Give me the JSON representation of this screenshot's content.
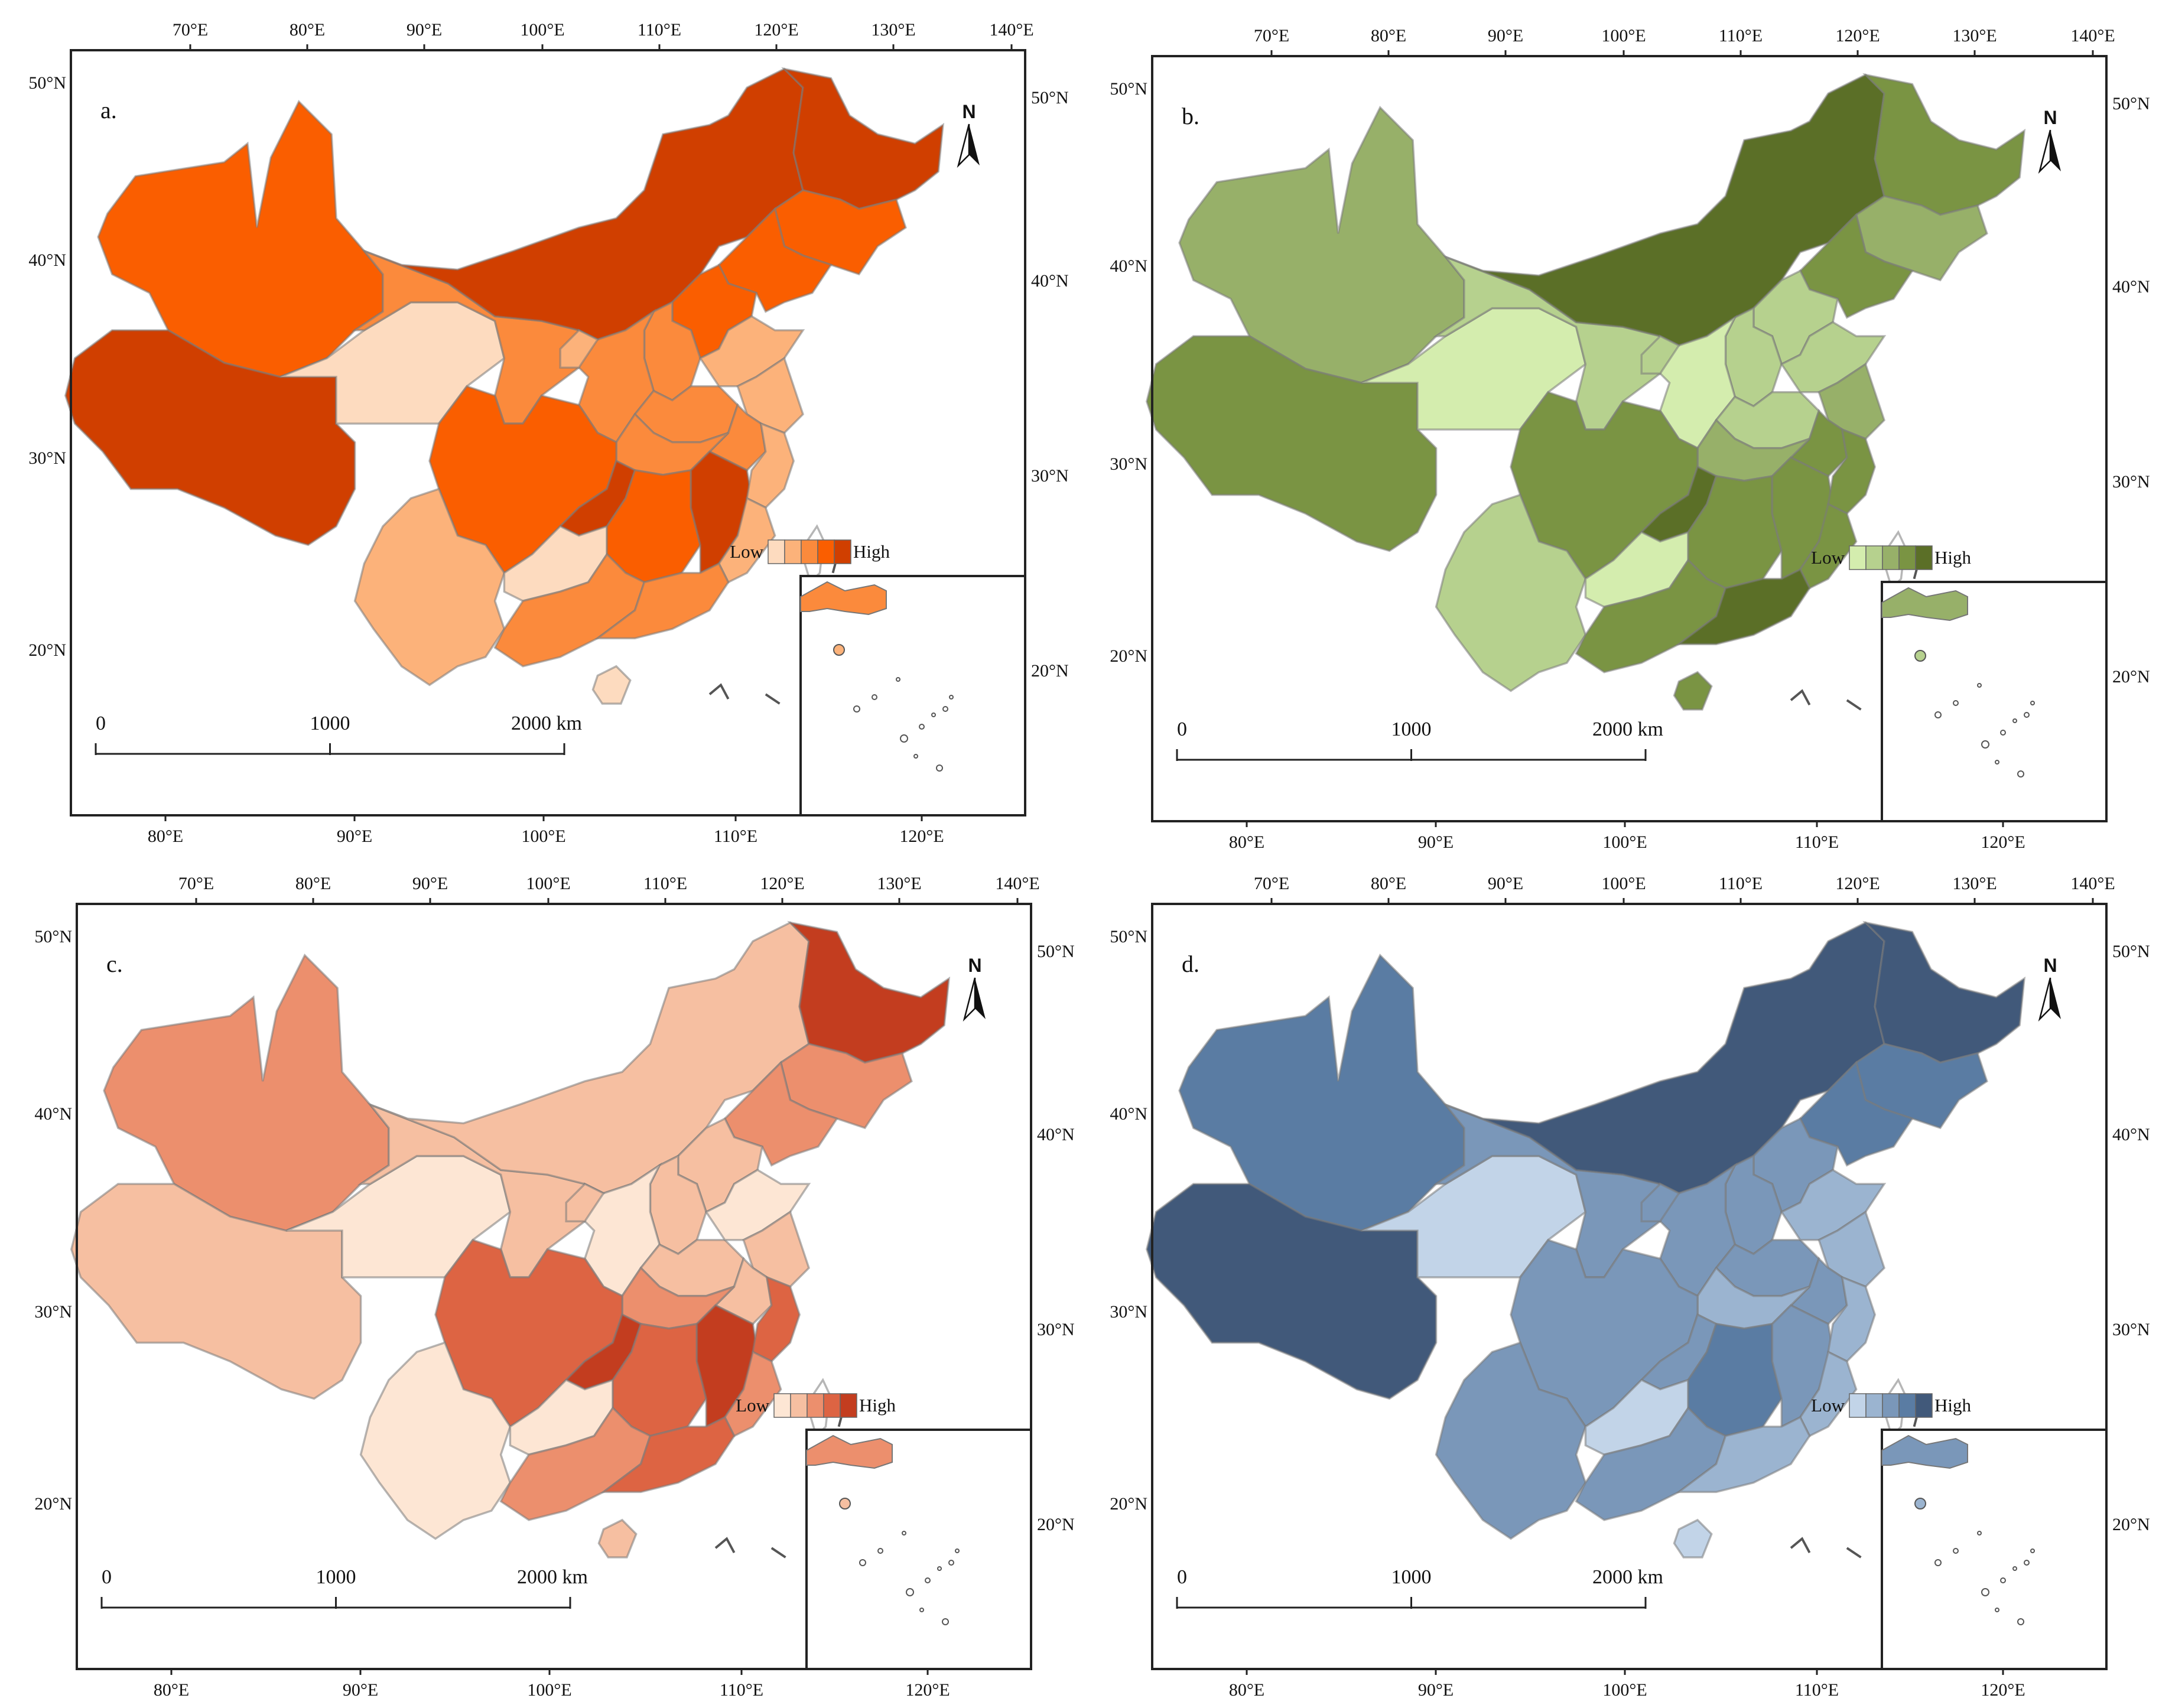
{
  "panels": [
    {
      "id": "a",
      "letter": "a.",
      "palette": [
        "#fddbbf",
        "#fcb27a",
        "#fb8a3c",
        "#fa5e00",
        "#d03f00"
      ],
      "legend": {
        "low": "Low",
        "high": "High"
      },
      "classes": {
        "xinjiang": 3,
        "tibet": 4,
        "qinghai": 0,
        "gansu": 2,
        "inner-mongolia": 4,
        "heilongjiang": 4,
        "jilin": 3,
        "liaoning": 3,
        "hebei": 3,
        "shanxi": 2,
        "shaanxi": 2,
        "ningxia": 1,
        "henan": 2,
        "shandong": 1,
        "jiangsu": 1,
        "anhui": 2,
        "hubei": 2,
        "sichuan": 3,
        "chongqing": 4,
        "yunnan": 1,
        "guizhou": 0,
        "hunan": 3,
        "jiangxi": 4,
        "zhejiang": 1,
        "fujian": 1,
        "guangxi": 2,
        "guangdong": 2,
        "hainan": 0,
        "taiwan": -1
      }
    },
    {
      "id": "b",
      "letter": "b.",
      "palette": [
        "#d4edae",
        "#b6d18e",
        "#97b069",
        "#7a9443",
        "#5b6f27"
      ],
      "legend": {
        "low": "Low",
        "high": "High"
      },
      "classes": {
        "xinjiang": 2,
        "tibet": 3,
        "qinghai": 0,
        "gansu": 1,
        "inner-mongolia": 4,
        "heilongjiang": 3,
        "jilin": 2,
        "liaoning": 3,
        "hebei": 1,
        "shanxi": 1,
        "shaanxi": 0,
        "ningxia": 1,
        "henan": 1,
        "shandong": 1,
        "jiangsu": 2,
        "anhui": 3,
        "hubei": 2,
        "sichuan": 3,
        "chongqing": 4,
        "yunnan": 1,
        "guizhou": 0,
        "hunan": 3,
        "jiangxi": 3,
        "zhejiang": 3,
        "fujian": 3,
        "guangxi": 3,
        "guangdong": 4,
        "hainan": 3,
        "taiwan": -1
      }
    },
    {
      "id": "c",
      "letter": "c.",
      "palette": [
        "#fde6d4",
        "#f6bfa1",
        "#ec8f6d",
        "#dd6443",
        "#c33d1f"
      ],
      "legend": {
        "low": "Low",
        "high": "High"
      },
      "classes": {
        "xinjiang": 2,
        "tibet": 1,
        "qinghai": 0,
        "gansu": 1,
        "inner-mongolia": 1,
        "heilongjiang": 4,
        "jilin": 2,
        "liaoning": 2,
        "hebei": 1,
        "shanxi": 1,
        "shaanxi": 0,
        "ningxia": 1,
        "henan": 1,
        "shandong": 0,
        "jiangsu": 1,
        "anhui": 1,
        "hubei": 2,
        "sichuan": 3,
        "chongqing": 4,
        "yunnan": 0,
        "guizhou": 0,
        "hunan": 3,
        "jiangxi": 4,
        "zhejiang": 3,
        "fujian": 2,
        "guangxi": 2,
        "guangdong": 3,
        "hainan": 1,
        "taiwan": -1
      }
    },
    {
      "id": "d",
      "letter": "d.",
      "palette": [
        "#c2d4e8",
        "#9bb4d0",
        "#7a97b9",
        "#5a7ca3",
        "#41597a"
      ],
      "legend": {
        "low": "Low",
        "high": "High"
      },
      "classes": {
        "xinjiang": 3,
        "tibet": 4,
        "qinghai": 0,
        "gansu": 2,
        "inner-mongolia": 4,
        "heilongjiang": 4,
        "jilin": 3,
        "liaoning": 3,
        "hebei": 2,
        "shanxi": 2,
        "shaanxi": 2,
        "ningxia": 2,
        "henan": 2,
        "shandong": 1,
        "jiangsu": 1,
        "anhui": 2,
        "hubei": 1,
        "sichuan": 2,
        "chongqing": 2,
        "yunnan": 2,
        "guizhou": 0,
        "hunan": 3,
        "jiangxi": 2,
        "zhejiang": 1,
        "fujian": 1,
        "guangxi": 2,
        "guangdong": 1,
        "hainan": 0,
        "taiwan": -1
      }
    }
  ],
  "axes": {
    "top_lon_labels": [
      "70°E",
      "80°E",
      "90°E",
      "100°E",
      "110°E",
      "120°E",
      "130°E",
      "140°E"
    ],
    "bottom_lon_labels": [
      "80°E",
      "90°E",
      "100°E",
      "110°E",
      "120°E"
    ],
    "left_lat_labels": [
      "50°N",
      "40°N",
      "30°N",
      "20°N"
    ],
    "right_lat_labels": [
      "50°N",
      "40°N",
      "30°N",
      "20°N"
    ]
  },
  "scale_bar": {
    "labels": [
      "0",
      "1000",
      "2000 km"
    ]
  },
  "north_arrow": {
    "label": "N"
  }
}
